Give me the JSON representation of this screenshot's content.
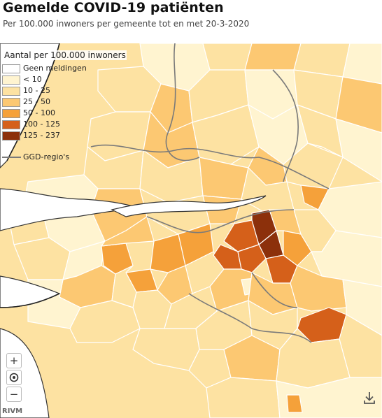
{
  "title": "Gemelde COVID-19 patiënten",
  "subtitle": "Per 100.000 inwoners per gemeente tot en met 20-3-2020",
  "legend": {
    "title": "Aantal per 100.000 inwoners",
    "items": [
      {
        "label": "Geen meldingen",
        "color": "#ffffff"
      },
      {
        "label": "< 10",
        "color": "#fff4d0"
      },
      {
        "label": "10 - 25",
        "color": "#fde2a2"
      },
      {
        "label": "25 - 50",
        "color": "#fcc872"
      },
      {
        "label": "50 - 100",
        "color": "#f5a13a"
      },
      {
        "label": "100 - 125",
        "color": "#d5601a"
      },
      {
        "label": "125 - 237",
        "color": "#8c300b"
      }
    ],
    "boundary_label": "GGD-regio's"
  },
  "controls": {
    "zoom_in": "+",
    "locate": "◎",
    "zoom_out": "−"
  },
  "source": "RIVM",
  "colors": {
    "water": "#ffffff",
    "border": "#333333",
    "municipality_line": "#ffffff",
    "ggd_line": "#7a7a7a"
  },
  "icons": {
    "download": "download-icon",
    "locate": "target-icon"
  }
}
